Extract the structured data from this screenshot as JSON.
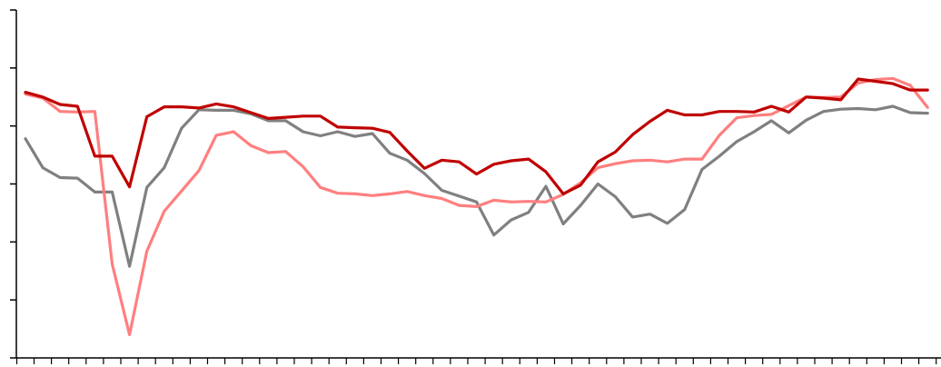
{
  "chart_data": {
    "type": "line",
    "title": "",
    "xlabel": "",
    "ylabel": "",
    "grid": false,
    "legend": "none",
    "ylim": [
      0,
      6
    ],
    "x": [
      0,
      1,
      2,
      3,
      4,
      5,
      6,
      7,
      8,
      9,
      10,
      11,
      12,
      13,
      14,
      15,
      16,
      17,
      18,
      19,
      20,
      21,
      22,
      23,
      24,
      25,
      26,
      27,
      28,
      29,
      30,
      31,
      32,
      33,
      34,
      35,
      36,
      37,
      38,
      39,
      40,
      41,
      42,
      43,
      44,
      45,
      46,
      47,
      48,
      49,
      50,
      51,
      52
    ],
    "series": [
      {
        "color": "#c00000",
        "values": [
          4.58,
          4.5,
          4.37,
          4.34,
          3.48,
          3.48,
          2.95,
          4.16,
          4.33,
          4.33,
          4.31,
          4.38,
          4.33,
          4.23,
          4.13,
          4.15,
          4.17,
          4.17,
          3.98,
          3.97,
          3.96,
          3.89,
          3.57,
          3.27,
          3.41,
          3.38,
          3.17,
          3.34,
          3.4,
          3.43,
          3.21,
          2.83,
          2.98,
          3.38,
          3.55,
          3.85,
          4.08,
          4.27,
          4.19,
          4.19,
          4.25,
          4.25,
          4.24,
          4.34,
          4.24,
          4.5,
          4.48,
          4.45,
          4.81,
          4.77,
          4.73,
          4.62,
          4.62
        ]
      },
      {
        "color": "#ff7f7f",
        "values": [
          4.55,
          4.48,
          4.25,
          4.24,
          4.25,
          1.62,
          0.4,
          1.84,
          2.53,
          2.88,
          3.23,
          3.84,
          3.9,
          3.66,
          3.54,
          3.56,
          3.3,
          2.94,
          2.84,
          2.83,
          2.8,
          2.83,
          2.87,
          2.8,
          2.75,
          2.63,
          2.61,
          2.72,
          2.69,
          2.7,
          2.69,
          2.82,
          3.02,
          3.28,
          3.35,
          3.4,
          3.41,
          3.38,
          3.43,
          3.43,
          3.84,
          4.14,
          4.18,
          4.2,
          4.35,
          4.5,
          4.49,
          4.5,
          4.74,
          4.8,
          4.82,
          4.7,
          4.32
        ]
      },
      {
        "color": "#808080",
        "values": [
          3.78,
          3.28,
          3.11,
          3.1,
          2.86,
          2.86,
          1.58,
          2.94,
          3.28,
          3.96,
          4.28,
          4.27,
          4.27,
          4.21,
          4.09,
          4.09,
          3.9,
          3.83,
          3.9,
          3.82,
          3.87,
          3.53,
          3.41,
          3.18,
          2.89,
          2.79,
          2.69,
          2.12,
          2.38,
          2.51,
          2.96,
          2.31,
          2.63,
          3.0,
          2.78,
          2.43,
          2.48,
          2.32,
          2.56,
          3.25,
          3.48,
          3.73,
          3.9,
          4.09,
          3.88,
          4.1,
          4.25,
          4.29,
          4.3,
          4.28,
          4.34,
          4.23,
          4.22
        ]
      }
    ]
  }
}
